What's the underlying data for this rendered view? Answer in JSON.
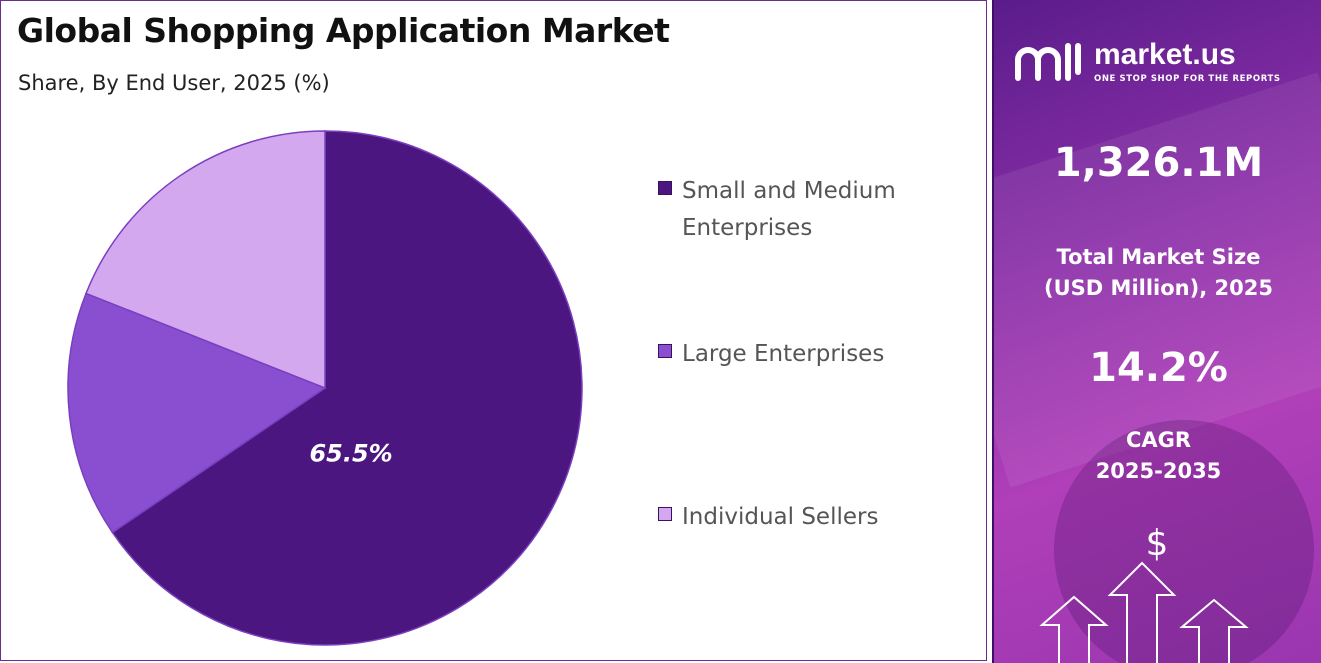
{
  "chart_data": {
    "type": "pie",
    "title": "Global Shopping Application Market",
    "subtitle": "Share, By End User, 2025 (%)",
    "slices": [
      {
        "label": "Small and Medium Enterprises",
        "value": 65.5,
        "color": "#4c1680",
        "data_label": "65.5%"
      },
      {
        "label": "Large Enterprises",
        "value": 15.5,
        "color": "#8a4fd0",
        "data_label": ""
      },
      {
        "label": "Individual Sellers",
        "value": 19.0,
        "color": "#d4a8ee",
        "data_label": ""
      }
    ],
    "start_angle_deg": 0,
    "direction": "clockwise",
    "legend_position": "right"
  },
  "sidebar": {
    "logo_name": "market.us",
    "logo_tagline": "ONE STOP SHOP FOR THE REPORTS",
    "market_size_value": "1,326.1M",
    "market_size_caption_1": "Total Market Size",
    "market_size_caption_2": "(USD Million), 2025",
    "cagr_value": "14.2%",
    "cagr_caption_1": "CAGR",
    "cagr_caption_2": "2025-2035",
    "currency_symbol": "$"
  },
  "colors": {
    "sidebar_background": "#8a2fa8",
    "border": "#6a2c91"
  }
}
